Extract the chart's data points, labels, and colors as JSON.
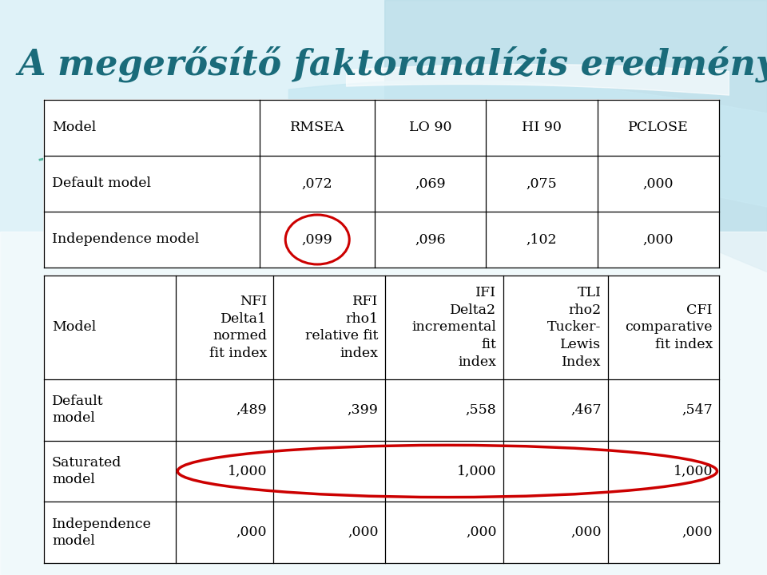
{
  "title": "A megerősítő faktoranalízis eredménye:",
  "title_color": "#1a6b7a",
  "bg_top_color": "#c8e8f0",
  "bg_bottom_color": "#dff0f5",
  "table1_headers": [
    "Model",
    "RMSEA",
    "LO 90",
    "HI 90",
    "PCLOSE"
  ],
  "table1_rows": [
    [
      "Default model",
      ",072",
      ",069",
      ",075",
      ",000"
    ],
    [
      "Independence model",
      ",099",
      ",096",
      ",102",
      ",000"
    ]
  ],
  "table2_col_headers": [
    "Model",
    "NFI\nDelta1\nnormed\nfit index",
    "RFI\nrho1\nrelative fit\nindex",
    "IFI\nDelta2\nincremental\nfit\nindex",
    "TLI\nrho2\nTucker-\nLewis\nIndex",
    "CFI\ncomparative\nfit index"
  ],
  "table2_data_rows": [
    [
      "Default\nmodel",
      ",489",
      ",399",
      ",558",
      ",467",
      ",547"
    ],
    [
      "Saturated\nmodel",
      "1,000",
      "",
      "1,000",
      "",
      "1,000"
    ],
    [
      "Independence\nmodel",
      ",000",
      ",000",
      ",000",
      ",000",
      ",000"
    ]
  ],
  "circle_color": "#cc0000",
  "font_size_title": 32,
  "font_size_table": 12.5
}
